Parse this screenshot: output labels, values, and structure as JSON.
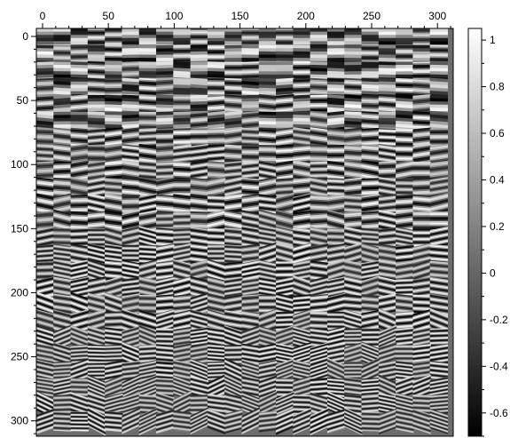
{
  "chart_data": {
    "type": "heatmap",
    "title": "",
    "xlabel": "",
    "ylabel": "",
    "xlim": [
      0,
      312
    ],
    "ylim": [
      312,
      0
    ],
    "x_axis_position": "top",
    "y_axis_direction": "downward",
    "x_tick_labels": [
      "0",
      "50",
      "100",
      "150",
      "200",
      "250",
      "300"
    ],
    "y_tick_labels": [
      "0",
      "50",
      "100",
      "150",
      "200",
      "250",
      "300"
    ],
    "colorbar": {
      "colormap": "grayscale",
      "min": -0.7,
      "max": 1.05,
      "tick_labels": [
        "1",
        "0.8",
        "0.6",
        "0.4",
        "0.2",
        "0",
        "-0.2",
        "-0.4",
        "-0.6"
      ],
      "placement": "right",
      "low_color": "#000000",
      "high_color": "#ffffff"
    },
    "structure": {
      "tile_rows": 24,
      "tile_cols": 24,
      "tile_size": 13,
      "description_of_pattern": "each tile contains horizontal sinusoidal fringes; fringes tilt and increase in frequency toward the lower rows"
    },
    "grid": false,
    "legend": "none"
  }
}
